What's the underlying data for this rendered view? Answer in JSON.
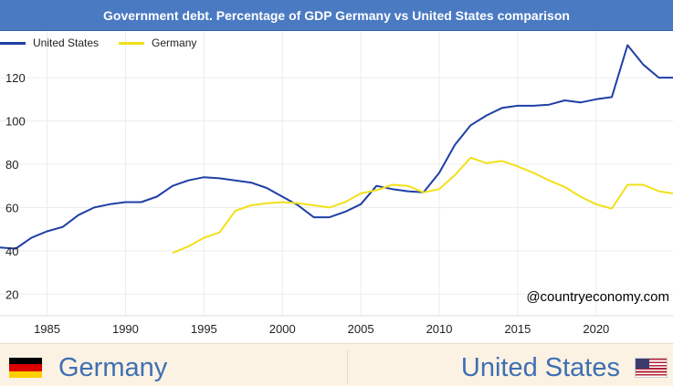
{
  "chart_data": {
    "type": "line",
    "title": "Government debt. Percentage of GDP Germany vs United States comparison",
    "xlabel": "",
    "ylabel": "",
    "xlim": [
      1982,
      2024.9
    ],
    "ylim": [
      10,
      139
    ],
    "x_ticks": [
      1985,
      1990,
      1995,
      2000,
      2005,
      2010,
      2015,
      2020
    ],
    "y_ticks": [
      20,
      40,
      60,
      80,
      100,
      120
    ],
    "grid": true,
    "legend_position": "top-left",
    "series": [
      {
        "name": "United States",
        "color": "#1f3fa5",
        "points": [
          [
            1982,
            41.5
          ],
          [
            1983,
            41
          ],
          [
            1984,
            46
          ],
          [
            1985,
            49
          ],
          [
            1986,
            51
          ],
          [
            1987,
            56.5
          ],
          [
            1988,
            60
          ],
          [
            1989,
            61.5
          ],
          [
            1990,
            62.5
          ],
          [
            1991,
            62.5
          ],
          [
            1992,
            65
          ],
          [
            1993,
            70
          ],
          [
            1994,
            72.5
          ],
          [
            1995,
            74
          ],
          [
            1996,
            73.5
          ],
          [
            1997,
            72.5
          ],
          [
            1998,
            71.5
          ],
          [
            1999,
            69
          ],
          [
            2000,
            65
          ],
          [
            2001,
            61
          ],
          [
            2002,
            55.5
          ],
          [
            2003,
            55.5
          ],
          [
            2004,
            58
          ],
          [
            2005,
            61.5
          ],
          [
            2006,
            70
          ],
          [
            2007,
            68.5
          ],
          [
            2008,
            67.5
          ],
          [
            2009,
            67
          ],
          [
            2010,
            76
          ],
          [
            2011,
            89
          ],
          [
            2012,
            98
          ],
          [
            2013,
            102.5
          ],
          [
            2014,
            106
          ],
          [
            2015,
            107
          ],
          [
            2016,
            107
          ],
          [
            2017,
            107.5
          ],
          [
            2018,
            109.5
          ],
          [
            2019,
            108.5
          ],
          [
            2020,
            110
          ],
          [
            2021,
            111
          ],
          [
            2022,
            135
          ],
          [
            2023,
            126
          ],
          [
            2024,
            120
          ],
          [
            2024.9,
            120
          ]
        ]
      },
      {
        "name": "Germany",
        "color": "#f2e01a",
        "points": [
          [
            1993,
            39
          ],
          [
            1994,
            42
          ],
          [
            1995,
            46
          ],
          [
            1996,
            48.5
          ],
          [
            1997,
            58.5
          ],
          [
            1998,
            61
          ],
          [
            1999,
            62
          ],
          [
            2000,
            62.5
          ],
          [
            2001,
            62
          ],
          [
            2002,
            61
          ],
          [
            2003,
            60
          ],
          [
            2004,
            62.5
          ],
          [
            2005,
            66.5
          ],
          [
            2006,
            68
          ],
          [
            2007,
            70.5
          ],
          [
            2008,
            70
          ],
          [
            2009,
            67
          ],
          [
            2010,
            68.5
          ],
          [
            2011,
            75
          ],
          [
            2012,
            83
          ],
          [
            2013,
            80.5
          ],
          [
            2014,
            81.5
          ],
          [
            2015,
            79
          ],
          [
            2016,
            76
          ],
          [
            2017,
            72.5
          ],
          [
            2018,
            69.5
          ],
          [
            2019,
            65
          ],
          [
            2020,
            61.5
          ],
          [
            2021,
            59.5
          ],
          [
            2022,
            70.5
          ],
          [
            2023,
            70.5
          ],
          [
            2024,
            67.5
          ],
          [
            2024.9,
            66.5
          ]
        ]
      }
    ]
  },
  "watermark": "@countryeconomy.com",
  "footer": {
    "left_country": "Germany",
    "right_country": "United States"
  },
  "icons": {
    "left_flag": "germany-flag-icon",
    "right_flag": "united-states-flag-icon"
  },
  "colors": {
    "title_bar": "#4a7ac2",
    "grid": "#ececec",
    "footer_bg": "#fbf2e3",
    "country_text": "#3e6fb3"
  }
}
